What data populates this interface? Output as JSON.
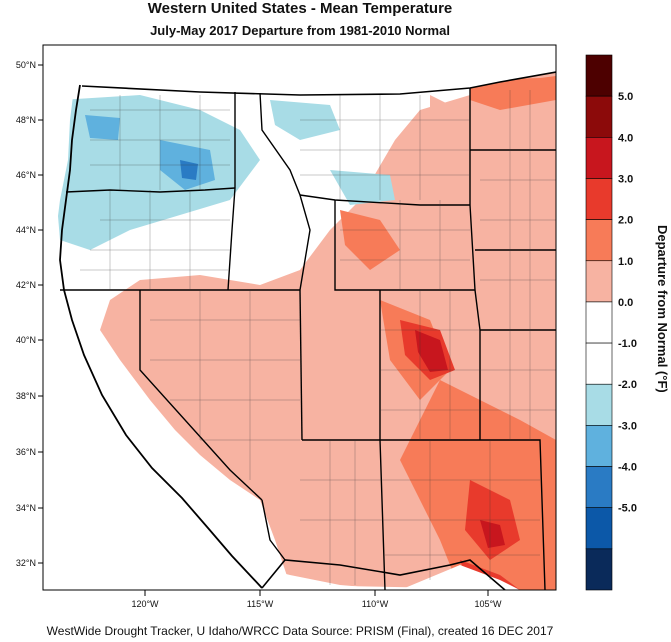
{
  "title": "Western United States - Mean Temperature",
  "subtitle": "July-May 2017  Departure from 1981-2010 Normal",
  "footer": "WestWide Drought Tracker, U Idaho/WRCC Data Source: PRISM (Final), created 16 DEC 2017",
  "colorbar": {
    "title": "Departure from Normal (°F)",
    "colors": [
      "#4d0000",
      "#8c0a0a",
      "#c8161e",
      "#e83a2c",
      "#f77b58",
      "#f7b3a2",
      "#ffffff",
      "#ffffff",
      "#a8dce6",
      "#5fb1de",
      "#2a7bc4",
      "#0c58a8",
      "#0a2a5a"
    ],
    "labels": [
      "5.0",
      "4.0",
      "3.0",
      "2.0",
      "1.0",
      "0.0",
      "-1.0",
      "-2.0",
      "-3.0",
      "-4.0",
      "-5.0"
    ]
  },
  "map": {
    "lat_labels": [
      "50°N",
      "48°N",
      "46°N",
      "44°N",
      "42°N",
      "40°N",
      "38°N",
      "36°N",
      "34°N",
      "32°N"
    ],
    "lon_labels": [
      "120°W",
      "115°W",
      "110°W",
      "105°W"
    ],
    "colors": {
      "warm_light": "#f7b3a2",
      "warm_mid": "#f77b58",
      "warm_strong": "#e83a2c",
      "warm_dark": "#c8161e",
      "warm_darkest": "#8c0a0a",
      "cool_light": "#a8dce6",
      "cool_mid": "#5fb1de",
      "cool_strong": "#2a7bc4",
      "neutral": "#ffffff"
    }
  }
}
